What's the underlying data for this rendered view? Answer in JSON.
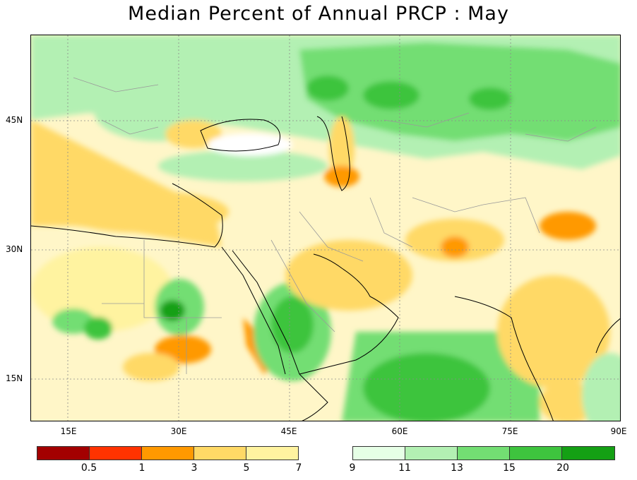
{
  "title": "Median Percent of Annual PRCP :   May",
  "map": {
    "lat_labels": [
      "45N",
      "30N",
      "15N"
    ],
    "lon_labels": [
      "15E",
      "30E",
      "45E",
      "60E",
      "75E",
      "90E"
    ]
  },
  "legend": {
    "dry_colors": [
      "#a30000",
      "#ff3300",
      "#ff9900",
      "#ffd966",
      "#fff3a0"
    ],
    "wet_colors": [
      "#e6ffe6",
      "#b3f0b3",
      "#73de73",
      "#3ec43e",
      "#14a014"
    ],
    "dry_labels": [
      "0.5",
      "1",
      "3",
      "5",
      "7"
    ],
    "wet_labels": [
      "9",
      "11",
      "13",
      "15",
      "20"
    ]
  }
}
